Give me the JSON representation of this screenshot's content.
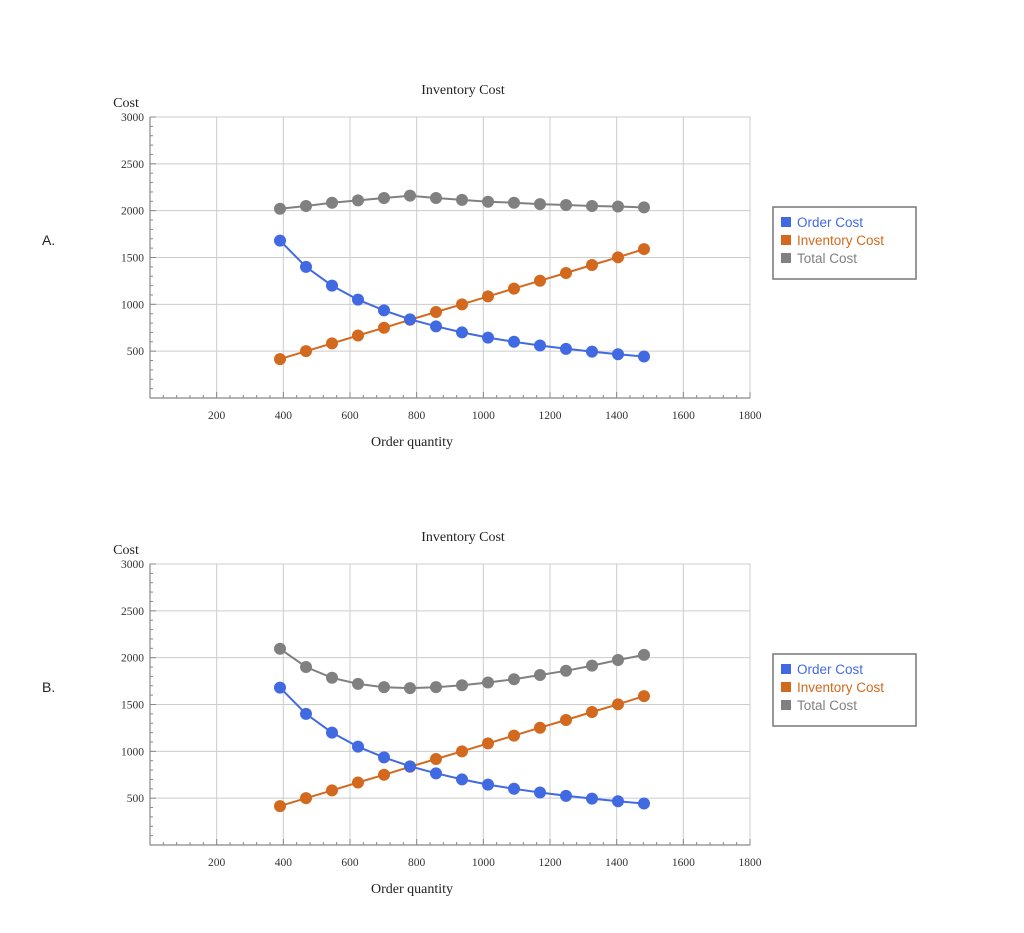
{
  "options": [
    {
      "label": "A."
    },
    {
      "label": "B."
    }
  ],
  "colors": {
    "order": "#4169e1",
    "inventory": "#d2691e",
    "total": "#808080",
    "grid": "#cccccc",
    "axis": "#888888"
  },
  "chart_data": [
    {
      "type": "line",
      "title": "Inventory Cost",
      "xlabel": "Order quantity",
      "ylabel": "Cost",
      "xlim": [
        0,
        1800
      ],
      "ylim": [
        0,
        3000
      ],
      "xticks": [
        200,
        400,
        600,
        800,
        1000,
        1200,
        1400,
        1600,
        1800
      ],
      "yticks": [
        500,
        1000,
        1500,
        2000,
        2500,
        3000
      ],
      "grid": true,
      "legend_position": "right",
      "x": [
        390,
        468,
        546,
        624,
        702,
        780,
        858,
        936,
        1014,
        1092,
        1170,
        1248,
        1326,
        1404,
        1482
      ],
      "series": [
        {
          "name": "Order Cost",
          "color": "#4169e1",
          "values": [
            1680,
            1400,
            1200,
            1050,
            935,
            840,
            765,
            700,
            645,
            600,
            560,
            525,
            495,
            467,
            443
          ]
        },
        {
          "name": "Inventory Cost",
          "color": "#d2691e",
          "values": [
            415,
            500,
            583,
            667,
            750,
            835,
            918,
            1000,
            1085,
            1168,
            1252,
            1335,
            1420,
            1502,
            1590
          ]
        },
        {
          "name": "Total Cost",
          "color": "#808080",
          "values": [
            2020,
            2050,
            2085,
            2110,
            2135,
            2160,
            2135,
            2115,
            2095,
            2085,
            2070,
            2060,
            2050,
            2045,
            2035
          ]
        }
      ]
    },
    {
      "type": "line",
      "title": "Inventory Cost",
      "xlabel": "Order quantity",
      "ylabel": "Cost",
      "xlim": [
        0,
        1800
      ],
      "ylim": [
        0,
        3000
      ],
      "xticks": [
        200,
        400,
        600,
        800,
        1000,
        1200,
        1400,
        1600,
        1800
      ],
      "yticks": [
        500,
        1000,
        1500,
        2000,
        2500,
        3000
      ],
      "grid": true,
      "legend_position": "right",
      "x": [
        390,
        468,
        546,
        624,
        702,
        780,
        858,
        936,
        1014,
        1092,
        1170,
        1248,
        1326,
        1404,
        1482
      ],
      "series": [
        {
          "name": "Order Cost",
          "color": "#4169e1",
          "values": [
            1680,
            1400,
            1200,
            1050,
            935,
            840,
            765,
            700,
            645,
            600,
            560,
            525,
            495,
            467,
            443
          ]
        },
        {
          "name": "Inventory Cost",
          "color": "#d2691e",
          "values": [
            415,
            500,
            583,
            667,
            750,
            835,
            918,
            1000,
            1085,
            1168,
            1252,
            1335,
            1420,
            1502,
            1590
          ]
        },
        {
          "name": "Total Cost",
          "color": "#808080",
          "values": [
            2095,
            1900,
            1785,
            1720,
            1685,
            1675,
            1685,
            1705,
            1735,
            1770,
            1815,
            1860,
            1915,
            1975,
            2030
          ]
        }
      ]
    }
  ]
}
